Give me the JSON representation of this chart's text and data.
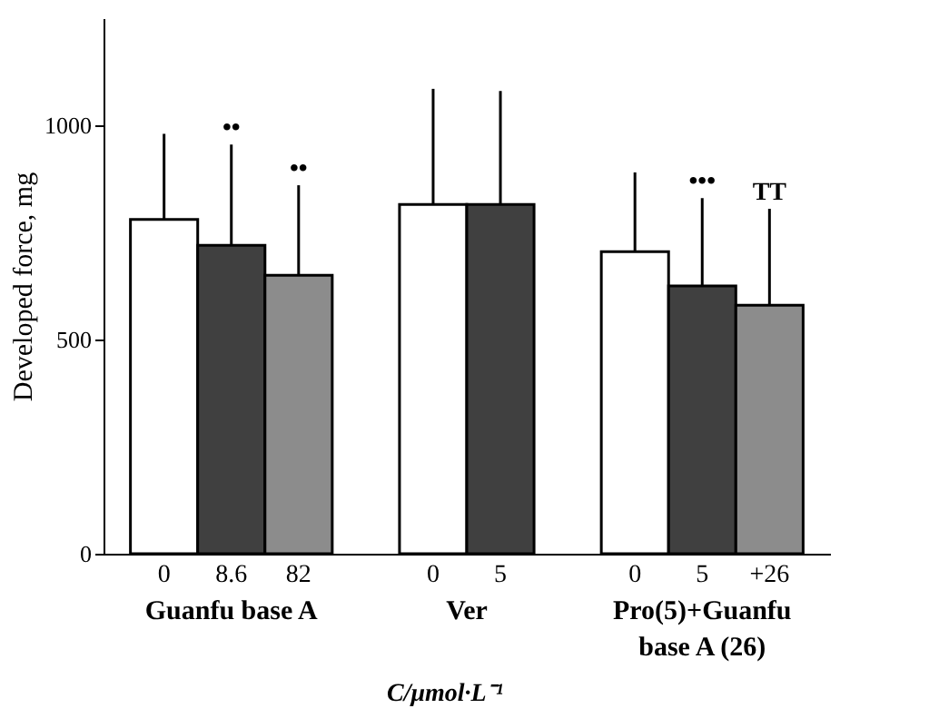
{
  "chart_data": {
    "type": "bar",
    "categories": [
      "0",
      "8.6",
      "82",
      "0",
      "5",
      "0",
      "5",
      "+26"
    ],
    "values": [
      780,
      720,
      650,
      815,
      815,
      705,
      625,
      580
    ],
    "colors": [
      "#ffffff",
      "#404040",
      "#8c8c8c",
      "#ffffff",
      "#404040",
      "#ffffff",
      "#404040",
      "#8c8c8c"
    ],
    "errors": [
      [
        780,
        980
      ],
      [
        720,
        955
      ],
      [
        650,
        860
      ],
      [
        815,
        1085
      ],
      [
        815,
        1080
      ],
      [
        705,
        890
      ],
      [
        625,
        830
      ],
      [
        580,
        805
      ]
    ],
    "ylabel": "Developed force, mg",
    "xlabel": "C/μmol·L⁻¹",
    "annotations": [
      "Guanfu base A",
      "Ver",
      "Pro(5)+Guanfu base A (26)",
      "••",
      "••",
      "•••",
      "TT"
    ],
    "ylim": [
      0,
      1250
    ],
    "yticks": [
      0,
      500,
      1000
    ],
    "grid": false
  }
}
